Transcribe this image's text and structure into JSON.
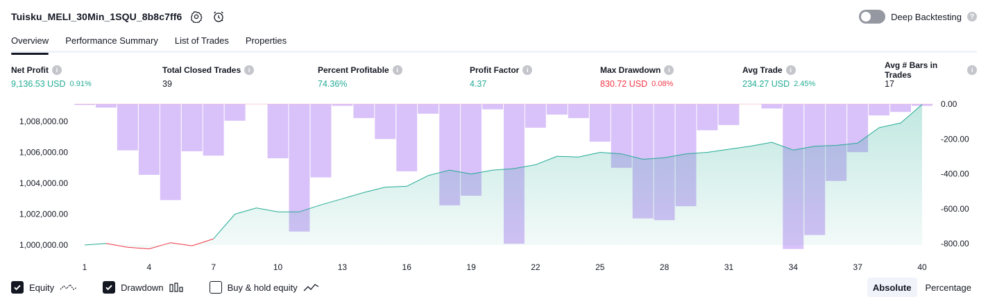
{
  "header": {
    "strategy_name": "Tuisku_MELI_30Min_1SQU_8b8c7ff6",
    "deep_backtesting_label": "Deep Backtesting",
    "help_glyph": "?"
  },
  "tabs": [
    {
      "label": "Overview",
      "active": true
    },
    {
      "label": "Performance Summary",
      "active": false
    },
    {
      "label": "List of Trades",
      "active": false
    },
    {
      "label": "Properties",
      "active": false
    }
  ],
  "metrics": [
    {
      "label": "Net Profit",
      "value": "9,136.53 USD",
      "pct": "0.91%",
      "color": "green"
    },
    {
      "label": "Total Closed Trades",
      "value": "39",
      "pct": "",
      "color": "dark"
    },
    {
      "label": "Percent Profitable",
      "value": "74.36%",
      "pct": "",
      "color": "green"
    },
    {
      "label": "Profit Factor",
      "value": "4.37",
      "pct": "",
      "color": "green"
    },
    {
      "label": "Max Drawdown",
      "value": "830.72 USD",
      "pct": "0.08%",
      "color": "red"
    },
    {
      "label": "Avg Trade",
      "value": "234.27 USD",
      "pct": "2.45%",
      "color": "green"
    },
    {
      "label": "Avg # Bars in Trades",
      "value": "17",
      "pct": "",
      "color": "dark"
    }
  ],
  "chart_data": {
    "type": "line",
    "x": [
      1,
      2,
      3,
      4,
      5,
      6,
      7,
      8,
      9,
      10,
      11,
      12,
      13,
      14,
      15,
      16,
      17,
      18,
      19,
      20,
      21,
      22,
      23,
      24,
      25,
      26,
      27,
      28,
      29,
      30,
      31,
      32,
      33,
      34,
      35,
      36,
      37,
      38,
      39,
      40
    ],
    "x_tick_labels": [
      "1",
      "4",
      "7",
      "10",
      "13",
      "16",
      "19",
      "22",
      "25",
      "28",
      "31",
      "34",
      "37",
      "40"
    ],
    "left_axis": {
      "ticks": [
        "1,000,000.00",
        "1,002,000.00",
        "1,004,000.00",
        "1,006,000.00",
        "1,008,000.00"
      ],
      "range": [
        999600,
        1009100
      ]
    },
    "right_axis": {
      "ticks": [
        "0.00",
        "-200.00",
        "-400.00",
        "-600.00",
        "-800.00"
      ],
      "range": [
        -830,
        0
      ]
    },
    "series": [
      {
        "key": "equity",
        "values": [
          1000000,
          1000100,
          999850,
          999750,
          1000150,
          999950,
          1000400,
          1002000,
          1002400,
          1002150,
          1002150,
          1002600,
          1003000,
          1003400,
          1003750,
          1003800,
          1004500,
          1004850,
          1004600,
          1004850,
          1004950,
          1005200,
          1005750,
          1005700,
          1006000,
          1005900,
          1005550,
          1005650,
          1005900,
          1006000,
          1006200,
          1006400,
          1006650,
          1006150,
          1006400,
          1006450,
          1006600,
          1007600,
          1007900,
          1009100
        ]
      },
      {
        "key": "drawdown",
        "values": [
          -5,
          -20,
          -265,
          -405,
          -550,
          -270,
          -295,
          -95,
          0,
          -310,
          -730,
          -420,
          -10,
          -80,
          -200,
          -385,
          -55,
          -580,
          -525,
          -30,
          -800,
          -135,
          -60,
          -80,
          -215,
          -365,
          -655,
          -665,
          -585,
          -150,
          -120,
          0,
          -25,
          -830,
          -750,
          -440,
          -275,
          -65,
          -45,
          -10
        ]
      }
    ],
    "colors": {
      "equity_up": "#22ab94",
      "equity_down": "#f23645",
      "drawdown": "#c9a7f7",
      "area_fill": "#22ab94"
    }
  },
  "legend": {
    "equity_label": "Equity",
    "drawdown_label": "Drawdown",
    "buyhold_label": "Buy & hold equity"
  },
  "mode": {
    "absolute_label": "Absolute",
    "percentage_label": "Percentage"
  }
}
